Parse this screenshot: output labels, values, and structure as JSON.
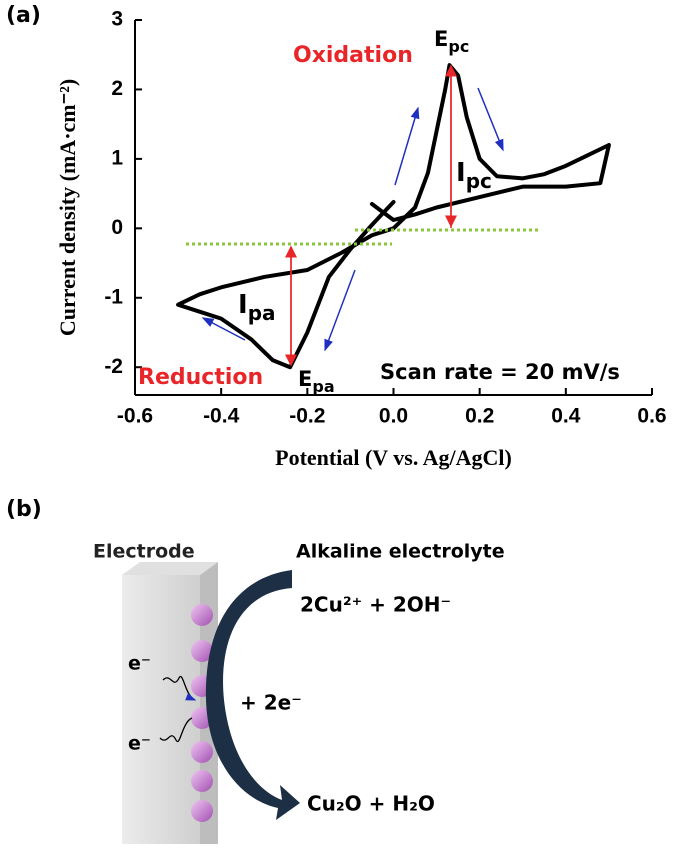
{
  "chart_data": {
    "type": "line",
    "panel_label": "(a)",
    "xlabel": "Potential (V vs. Ag/AgCl)",
    "ylabel": "Current density (mA·cm⁻²)",
    "xlim": [
      -0.6,
      0.6
    ],
    "ylim": [
      -2.4,
      3
    ],
    "xticks": [
      -0.6,
      -0.4,
      -0.2,
      {
        "value": 0,
        "label": "0.0"
      },
      0.2,
      0.4,
      0.6
    ],
    "yticks": [
      -2,
      -1,
      0,
      1,
      2,
      3
    ],
    "series": [
      {
        "color": "#000000",
        "x": [
          0.0,
          -0.05,
          -0.1,
          -0.15,
          -0.2,
          -0.24,
          -0.28,
          -0.33,
          -0.4,
          -0.45,
          -0.5,
          -0.45,
          -0.4,
          -0.3,
          -0.2,
          -0.12,
          -0.05,
          0.0,
          0.05,
          0.08,
          0.1,
          0.12,
          0.13,
          0.15,
          0.17,
          0.2,
          0.24,
          0.3,
          0.35,
          0.4,
          0.45,
          0.5,
          0.48,
          0.4,
          0.3,
          0.2,
          0.1,
          0.05,
          0.0,
          -0.05
        ],
        "values": [
          0.38,
          0.05,
          -0.3,
          -0.7,
          -1.5,
          -2.0,
          -1.9,
          -1.6,
          -1.3,
          -1.2,
          -1.1,
          -0.95,
          -0.85,
          -0.7,
          -0.6,
          -0.35,
          -0.1,
          0.0,
          0.3,
          0.8,
          1.4,
          2.0,
          2.35,
          2.2,
          1.6,
          1.0,
          0.75,
          0.72,
          0.78,
          0.9,
          1.05,
          1.2,
          0.65,
          0.6,
          0.6,
          0.45,
          0.3,
          0.2,
          0.12,
          0.35
        ]
      }
    ],
    "annotations": {
      "oxidation": "Oxidation",
      "reduction": "Reduction",
      "epc": {
        "text": "E",
        "sub": "pc"
      },
      "ipc": {
        "text": "I",
        "sub": "pc"
      },
      "ipa": {
        "text": "I",
        "sub": "pa"
      },
      "epa": {
        "text": "E",
        "sub": "pa"
      },
      "scan_rate": "Scan rate = 20 mV/s"
    }
  },
  "panel_b": {
    "label": "(b)",
    "electrode": "Electrode",
    "electrolyte": "Alkaline electrolyte",
    "reactants": "2Cu²⁺ + 2OH⁻",
    "electrons": "+ 2e⁻",
    "products": "Cu₂O + H₂O",
    "electron_labels": [
      "e⁻",
      "e⁻"
    ]
  }
}
